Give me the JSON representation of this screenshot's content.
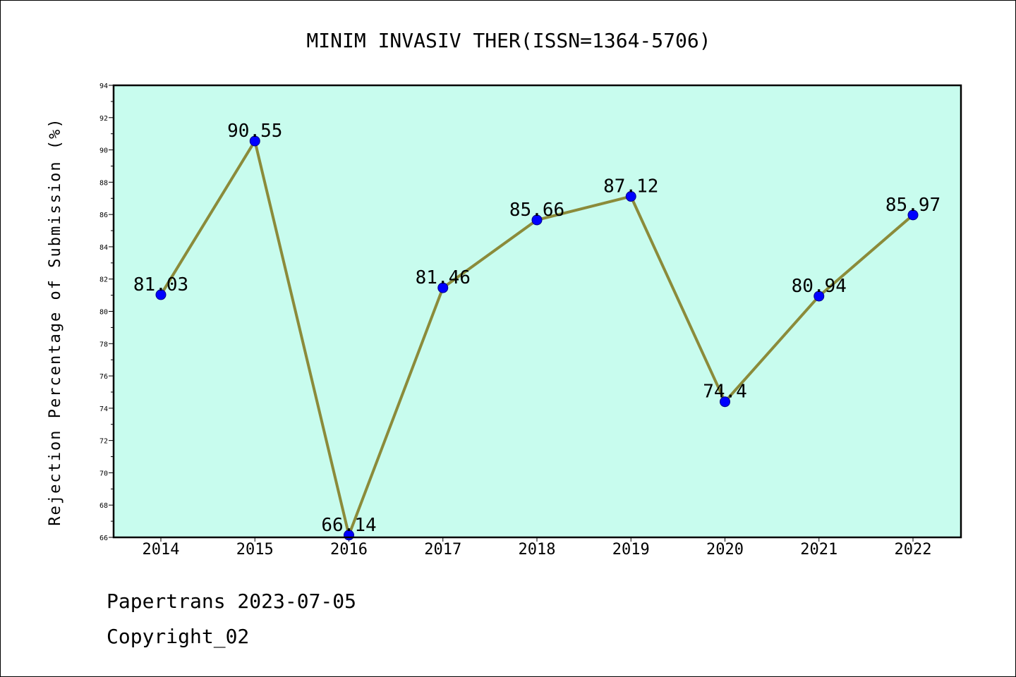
{
  "chart_data": {
    "type": "line",
    "title": "MINIM INVASIV THER(ISSN=1364-5706)",
    "ylabel": "Rejection Percentage of Submission (%)",
    "xlabel": "",
    "categories": [
      "2014",
      "2015",
      "2016",
      "2017",
      "2018",
      "2019",
      "2020",
      "2021",
      "2022"
    ],
    "values": [
      81.03,
      90.55,
      66.14,
      81.46,
      85.66,
      87.12,
      74.4,
      80.94,
      85.97
    ],
    "data_labels": [
      "81.03",
      "90.55",
      "66.14",
      "81.46",
      "85.66",
      "87.12",
      "74.4",
      "80.94",
      "85.97"
    ],
    "ylim": [
      66,
      94
    ],
    "yticks": [
      "66",
      "68",
      "70",
      "72",
      "74",
      "76",
      "78",
      "80",
      "82",
      "84",
      "86",
      "88",
      "90",
      "92",
      "94"
    ],
    "grid": false,
    "colors": {
      "plot_background": "#c8fcee",
      "line": "#8b8b3a",
      "marker": "#0000ff"
    }
  },
  "footer": {
    "line1": "Papertrans 2023-07-05",
    "line2": "Copyright_02"
  }
}
